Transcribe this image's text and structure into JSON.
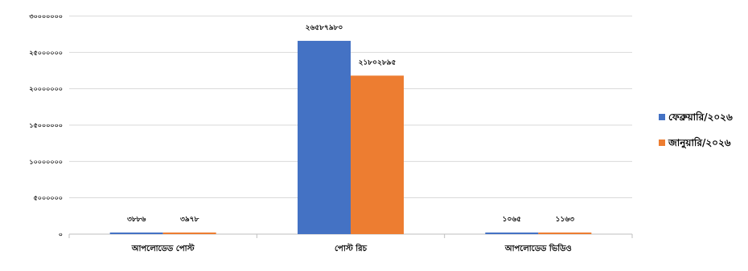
{
  "chart_data": {
    "type": "bar",
    "title": "",
    "xlabel": "",
    "ylabel": "",
    "ylim": [
      0,
      30000000
    ],
    "y_ticks": [
      0,
      5000000,
      10000000,
      15000000,
      20000000,
      25000000,
      30000000
    ],
    "y_tick_labels": [
      "০",
      "৫০০০০০০",
      "১০০০০০০০",
      "১৫০০০০০০",
      "২০০০০০০০",
      "২৫০০০০০০",
      "৩০০০০০০০"
    ],
    "grid": true,
    "legend_position": "right",
    "categories": [
      "আপলোডেড পোস্ট",
      "পোস্ট রিচ",
      "আপলোডেড ভিডিও"
    ],
    "series": [
      {
        "name": "ফেব্রুয়ারি/২০২৬",
        "color": "#4472C4",
        "values": [
          3886,
          26587980,
          1065
        ],
        "labels": [
          "৩৮৮৬",
          "২৬৫৮৭৯৮০",
          "১০৬৫"
        ]
      },
      {
        "name": "জানুয়ারি/২০২৬",
        "color": "#ED7D31",
        "values": [
          3978,
          21802895,
          1163
        ],
        "labels": [
          "৩৯৭৮",
          "২১৮০২৮৯৫",
          "১১৬৩"
        ]
      }
    ]
  }
}
